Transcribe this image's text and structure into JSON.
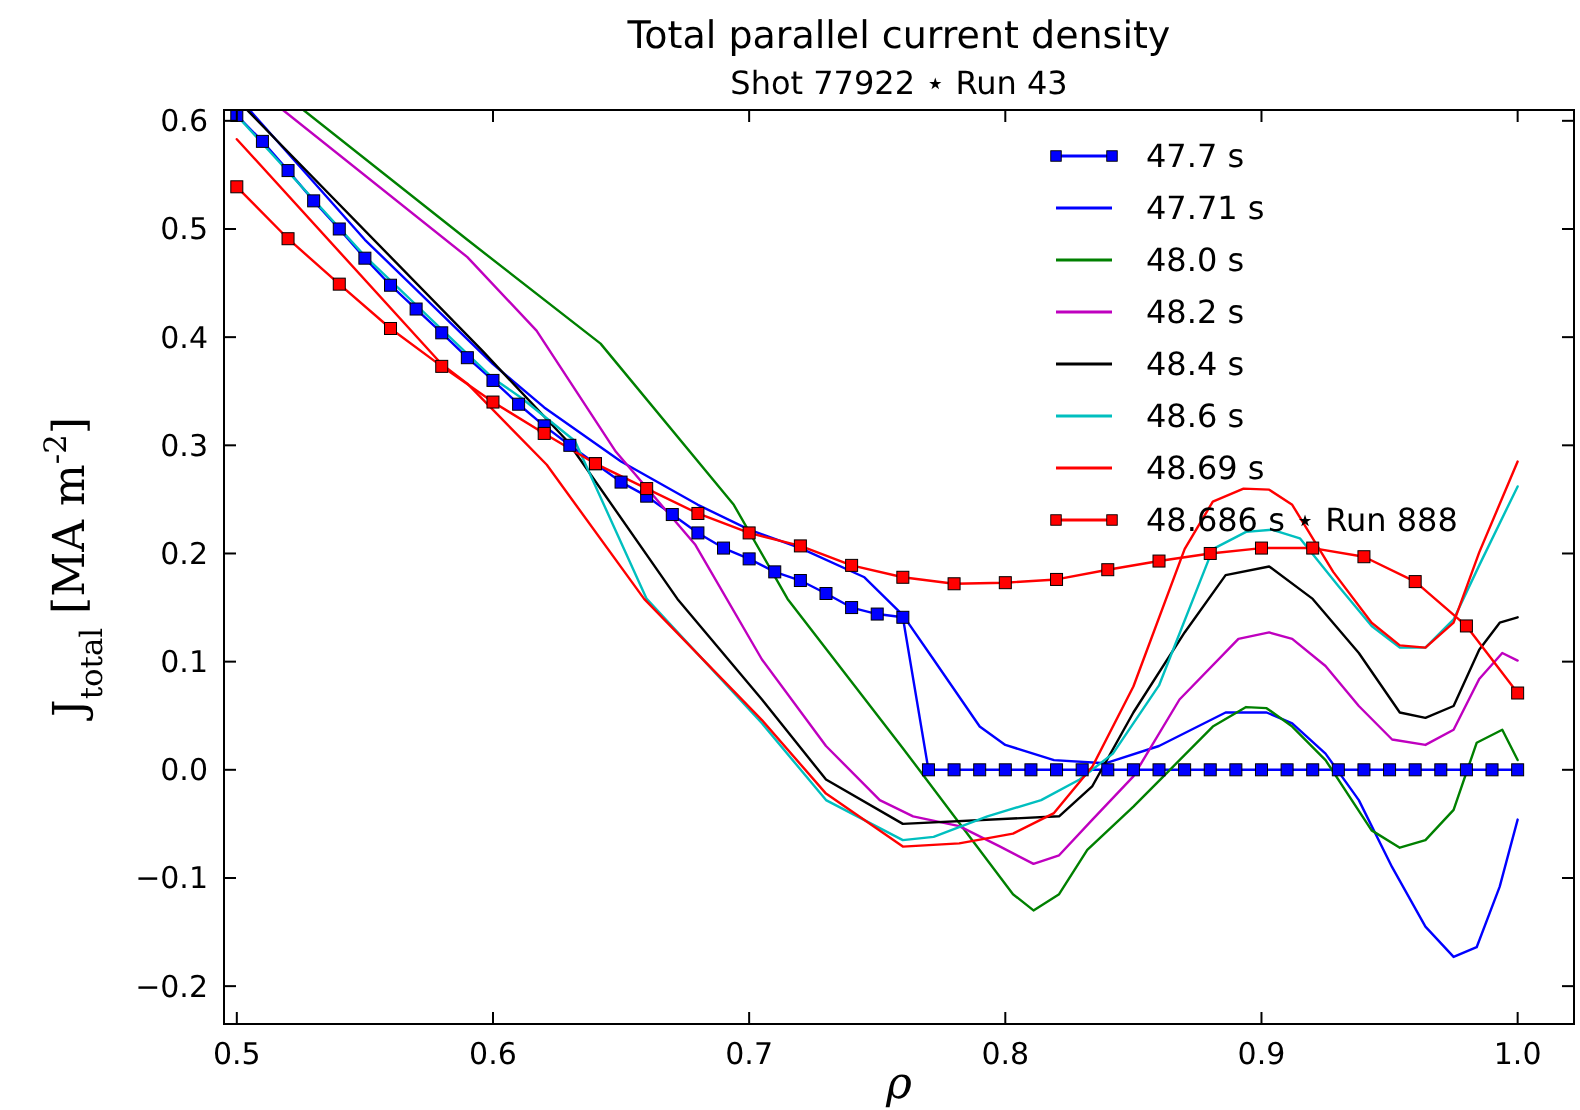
{
  "chart_data": {
    "type": "line",
    "title": "Total parallel current density",
    "subtitle": "Shot 77922 ⋆ Run 43",
    "xlabel": "ρ",
    "ylabel": "J$_{total}$ [MA m$^{-2}$]",
    "xlim": [
      0.495,
      1.022
    ],
    "ylim": [
      -0.235,
      0.61
    ],
    "xticks": [
      0.5,
      0.6,
      0.7,
      0.8,
      0.9,
      {
        "value": 1,
        "label": "1.0"
      }
    ],
    "yticks": [
      {
        "value": -0.2,
        "label": "−0.2"
      },
      {
        "value": -0.1,
        "label": "−0.1"
      },
      {
        "value": 0,
        "label": "0.0"
      },
      0.1,
      0.2,
      0.3,
      0.4,
      0.5,
      0.6
    ],
    "grid": false,
    "legend": "top right",
    "line_style": "solid",
    "series": [
      {
        "name": "47.7 s",
        "color": "#0000ff",
        "marker": "square",
        "x": [
          0.5,
          0.51,
          0.52,
          0.53,
          0.54,
          0.55,
          0.56,
          0.57,
          0.58,
          0.59,
          0.6,
          0.61,
          0.62,
          0.63,
          0.64,
          0.65,
          0.66,
          0.67,
          0.68,
          0.69,
          0.7,
          0.71,
          0.72,
          0.73,
          0.74,
          0.75,
          0.76,
          0.77,
          0.78,
          0.79,
          0.8,
          0.81,
          0.82,
          0.83,
          0.84,
          0.85,
          0.86,
          0.87,
          0.88,
          0.89,
          0.9,
          0.91,
          0.92,
          0.93,
          0.94,
          0.95,
          0.96,
          0.97,
          0.98,
          0.99,
          1
        ],
        "values": [
          0.605,
          0.581,
          0.554,
          0.526,
          0.5,
          0.473,
          0.448,
          0.426,
          0.404,
          0.381,
          0.36,
          0.338,
          0.318,
          0.3,
          0.283,
          0.266,
          0.253,
          0.236,
          0.219,
          0.205,
          0.195,
          0.183,
          0.175,
          0.163,
          0.15,
          0.144,
          0.141,
          0,
          0,
          0,
          0,
          0,
          0,
          0,
          0,
          0,
          0,
          0,
          0,
          0,
          0,
          0,
          0,
          0,
          0,
          0,
          0,
          0,
          0,
          0,
          0
        ]
      },
      {
        "name": "47.71 s",
        "color": "#0000ff",
        "marker": "none",
        "x": [
          0.505,
          0.55,
          0.6,
          0.62,
          0.65,
          0.68,
          0.7,
          0.72,
          0.745,
          0.76,
          0.772,
          0.79,
          0.8,
          0.819,
          0.839,
          0.86,
          0.886,
          0.902,
          0.912,
          0.925,
          0.938,
          0.951,
          0.964,
          0.975,
          0.984,
          0.993,
          1
        ],
        "values": [
          0.61,
          0.49,
          0.375,
          0.335,
          0.285,
          0.245,
          0.222,
          0.205,
          0.178,
          0.143,
          0.102,
          0.04,
          0.023,
          0.009,
          0.006,
          0.022,
          0.053,
          0.053,
          0.043,
          0.015,
          -0.028,
          -0.09,
          -0.145,
          -0.173,
          -0.164,
          -0.108,
          -0.046
        ]
      },
      {
        "name": "48.0 s",
        "color": "#008000",
        "marker": "none",
        "x": [
          0.526,
          0.59,
          0.642,
          0.694,
          0.715,
          0.76,
          0.803,
          0.811,
          0.821,
          0.832,
          0.85,
          0.863,
          0.881,
          0.894,
          0.902,
          0.912,
          0.925,
          0.943,
          0.954,
          0.964,
          0.975,
          0.984,
          0.994,
          1
        ],
        "values": [
          0.61,
          0.49,
          0.394,
          0.245,
          0.158,
          0.02,
          -0.115,
          -0.13,
          -0.115,
          -0.074,
          -0.034,
          -0.003,
          0.04,
          0.058,
          0.057,
          0.04,
          0.009,
          -0.056,
          -0.072,
          -0.065,
          -0.037,
          0.025,
          0.037,
          0.009
        ]
      },
      {
        "name": "48.2 s",
        "color": "#bf00bf",
        "marker": "none",
        "x": [
          0.518,
          0.59,
          0.617,
          0.648,
          0.679,
          0.705,
          0.73,
          0.751,
          0.764,
          0.782,
          0.798,
          0.811,
          0.821,
          0.834,
          0.85,
          0.868,
          0.891,
          0.903,
          0.912,
          0.925,
          0.938,
          0.951,
          0.964,
          0.975,
          0.985,
          0.994,
          1
        ],
        "values": [
          0.61,
          0.474,
          0.406,
          0.294,
          0.208,
          0.102,
          0.022,
          -0.028,
          -0.043,
          -0.052,
          -0.071,
          -0.087,
          -0.079,
          -0.046,
          -0.006,
          0.065,
          0.121,
          0.127,
          0.121,
          0.096,
          0.059,
          0.028,
          0.023,
          0.037,
          0.084,
          0.108,
          0.101
        ]
      },
      {
        "name": "48.4 s",
        "color": "#000000",
        "marker": "none",
        "x": [
          0.504,
          0.596,
          0.629,
          0.672,
          0.705,
          0.73,
          0.76,
          0.821,
          0.834,
          0.85,
          0.87,
          0.886,
          0.903,
          0.92,
          0.938,
          0.954,
          0.964,
          0.975,
          0.985,
          0.993,
          1
        ],
        "values": [
          0.61,
          0.387,
          0.304,
          0.158,
          0.065,
          -0.009,
          -0.05,
          -0.043,
          -0.015,
          0.053,
          0.127,
          0.18,
          0.188,
          0.158,
          0.108,
          0.053,
          0.048,
          0.059,
          0.111,
          0.136,
          0.141
        ]
      },
      {
        "name": "48.6 s",
        "color": "#00bfbf",
        "marker": "none",
        "x": [
          0.5,
          0.55,
          0.6,
          0.611,
          0.632,
          0.66,
          0.705,
          0.73,
          0.76,
          0.772,
          0.793,
          0.814,
          0.829,
          0.842,
          0.86,
          0.881,
          0.894,
          0.904,
          0.915,
          0.93,
          0.943,
          0.954,
          0.964,
          0.975,
          0.985,
          1
        ],
        "values": [
          0.605,
          0.475,
          0.362,
          0.344,
          0.304,
          0.158,
          0.043,
          -0.028,
          -0.065,
          -0.062,
          -0.043,
          -0.028,
          -0.009,
          0.015,
          0.078,
          0.204,
          0.22,
          0.222,
          0.214,
          0.17,
          0.133,
          0.113,
          0.113,
          0.139,
          0.189,
          0.262
        ]
      },
      {
        "name": "48.69 s",
        "color": "#ff0000",
        "marker": "none",
        "x": [
          0.5,
          0.58,
          0.59,
          0.621,
          0.659,
          0.705,
          0.73,
          0.76,
          0.782,
          0.803,
          0.819,
          0.834,
          0.85,
          0.87,
          0.881,
          0.893,
          0.903,
          0.912,
          0.928,
          0.943,
          0.954,
          0.964,
          0.975,
          0.985,
          1
        ],
        "values": [
          0.583,
          0.375,
          0.357,
          0.282,
          0.158,
          0.046,
          -0.022,
          -0.071,
          -0.068,
          -0.059,
          -0.04,
          0.003,
          0.077,
          0.204,
          0.248,
          0.26,
          0.259,
          0.245,
          0.183,
          0.136,
          0.115,
          0.113,
          0.136,
          0.201,
          0.285
        ]
      },
      {
        "name": "48.686 s ⋆ Run 888",
        "color": "#ff0000",
        "marker": "square",
        "x": [
          0.5,
          0.52,
          0.54,
          0.56,
          0.58,
          0.6,
          0.62,
          0.64,
          0.66,
          0.68,
          0.7,
          0.72,
          0.74,
          0.76,
          0.78,
          0.8,
          0.82,
          0.84,
          0.86,
          0.88,
          0.9,
          0.92,
          0.94,
          0.96,
          0.98,
          1
        ],
        "values": [
          0.539,
          0.491,
          0.449,
          0.408,
          0.373,
          0.34,
          0.311,
          0.283,
          0.26,
          0.237,
          0.219,
          0.207,
          0.189,
          0.178,
          0.172,
          0.173,
          0.176,
          0.185,
          0.193,
          0.2,
          0.205,
          0.205,
          0.197,
          0.174,
          0.133,
          0.071
        ]
      }
    ]
  }
}
